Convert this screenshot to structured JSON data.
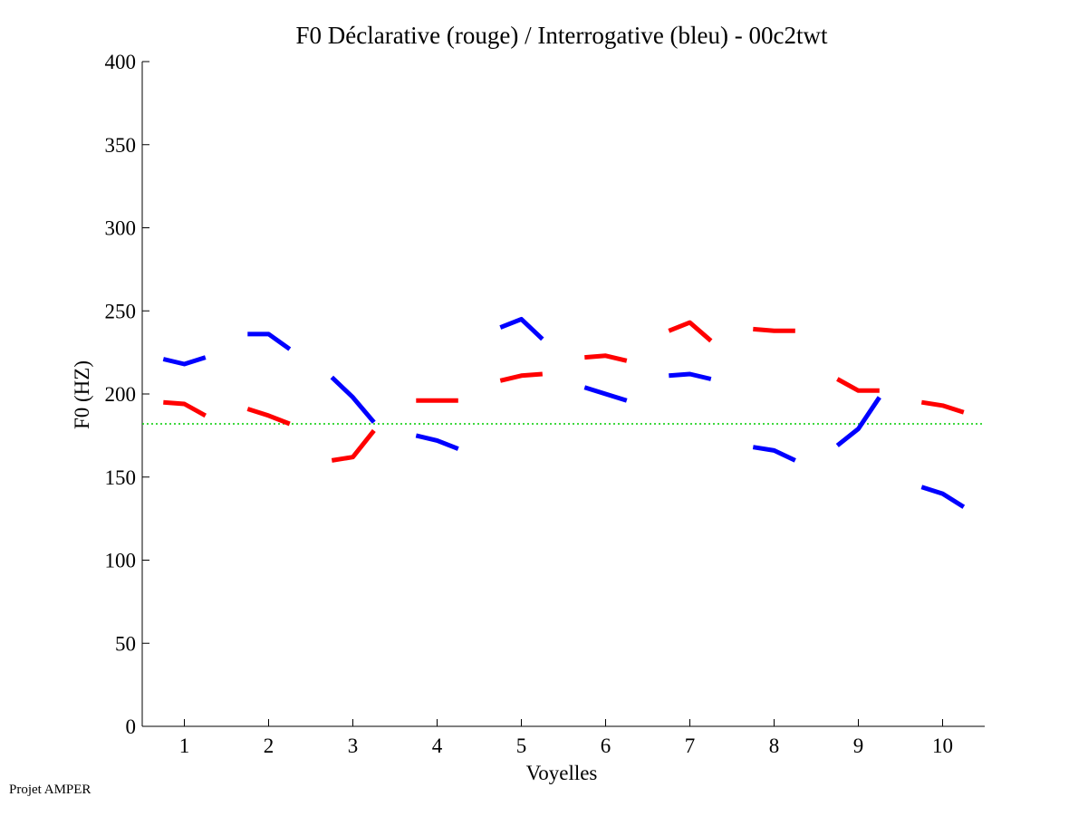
{
  "chart_data": {
    "type": "line",
    "title": "F0 Déclarative (rouge) / Interrogative (bleu) - 00c2twt",
    "xlabel": "Voyelles",
    "ylabel": "F0 (HZ)",
    "ylim": [
      0,
      400
    ],
    "yticks": [
      0,
      50,
      100,
      150,
      200,
      250,
      300,
      350,
      400
    ],
    "xlim": [
      0.5,
      10.5
    ],
    "categories": [
      "1",
      "2",
      "3",
      "4",
      "5",
      "6",
      "7",
      "8",
      "9",
      "10"
    ],
    "grid": false,
    "reference_line": {
      "y": 182,
      "color": "#00cc00",
      "style": "dotted"
    },
    "series": [
      {
        "color": "#ff0000",
        "segments": [
          [
            [
              0.75,
              195
            ],
            [
              1.0,
              194
            ],
            [
              1.25,
              187
            ]
          ],
          [
            [
              1.75,
              191
            ],
            [
              2.0,
              187
            ],
            [
              2.25,
              182
            ]
          ],
          [
            [
              2.75,
              160
            ],
            [
              3.0,
              162
            ],
            [
              3.25,
              178
            ]
          ],
          [
            [
              3.75,
              196
            ],
            [
              4.0,
              196
            ],
            [
              4.25,
              196
            ]
          ],
          [
            [
              4.75,
              208
            ],
            [
              5.0,
              211
            ],
            [
              5.25,
              212
            ]
          ],
          [
            [
              5.75,
              222
            ],
            [
              6.0,
              223
            ],
            [
              6.25,
              220
            ]
          ],
          [
            [
              6.75,
              238
            ],
            [
              7.0,
              243
            ],
            [
              7.25,
              232
            ]
          ],
          [
            [
              7.75,
              239
            ],
            [
              8.0,
              238
            ],
            [
              8.25,
              238
            ]
          ],
          [
            [
              8.75,
              209
            ],
            [
              9.0,
              202
            ],
            [
              9.25,
              202
            ]
          ],
          [
            [
              9.75,
              195
            ],
            [
              10.0,
              193
            ],
            [
              10.25,
              189
            ]
          ]
        ]
      },
      {
        "color": "#0000ff",
        "segments": [
          [
            [
              0.75,
              221
            ],
            [
              1.0,
              218
            ],
            [
              1.25,
              222
            ]
          ],
          [
            [
              1.75,
              236
            ],
            [
              2.0,
              236
            ],
            [
              2.25,
              227
            ]
          ],
          [
            [
              2.75,
              210
            ],
            [
              3.0,
              198
            ],
            [
              3.25,
              183
            ]
          ],
          [
            [
              3.75,
              175
            ],
            [
              4.0,
              172
            ],
            [
              4.25,
              167
            ]
          ],
          [
            [
              4.75,
              240
            ],
            [
              5.0,
              245
            ],
            [
              5.25,
              233
            ]
          ],
          [
            [
              5.75,
              204
            ],
            [
              6.0,
              200
            ],
            [
              6.25,
              196
            ]
          ],
          [
            [
              6.75,
              211
            ],
            [
              7.0,
              212
            ],
            [
              7.25,
              209
            ]
          ],
          [
            [
              7.75,
              168
            ],
            [
              8.0,
              166
            ],
            [
              8.25,
              160
            ]
          ],
          [
            [
              8.75,
              169
            ],
            [
              9.0,
              179
            ],
            [
              9.25,
              198
            ]
          ],
          [
            [
              9.75,
              144
            ],
            [
              10.0,
              140
            ],
            [
              10.25,
              132
            ]
          ]
        ]
      }
    ]
  },
  "footer": "Projet AMPER"
}
